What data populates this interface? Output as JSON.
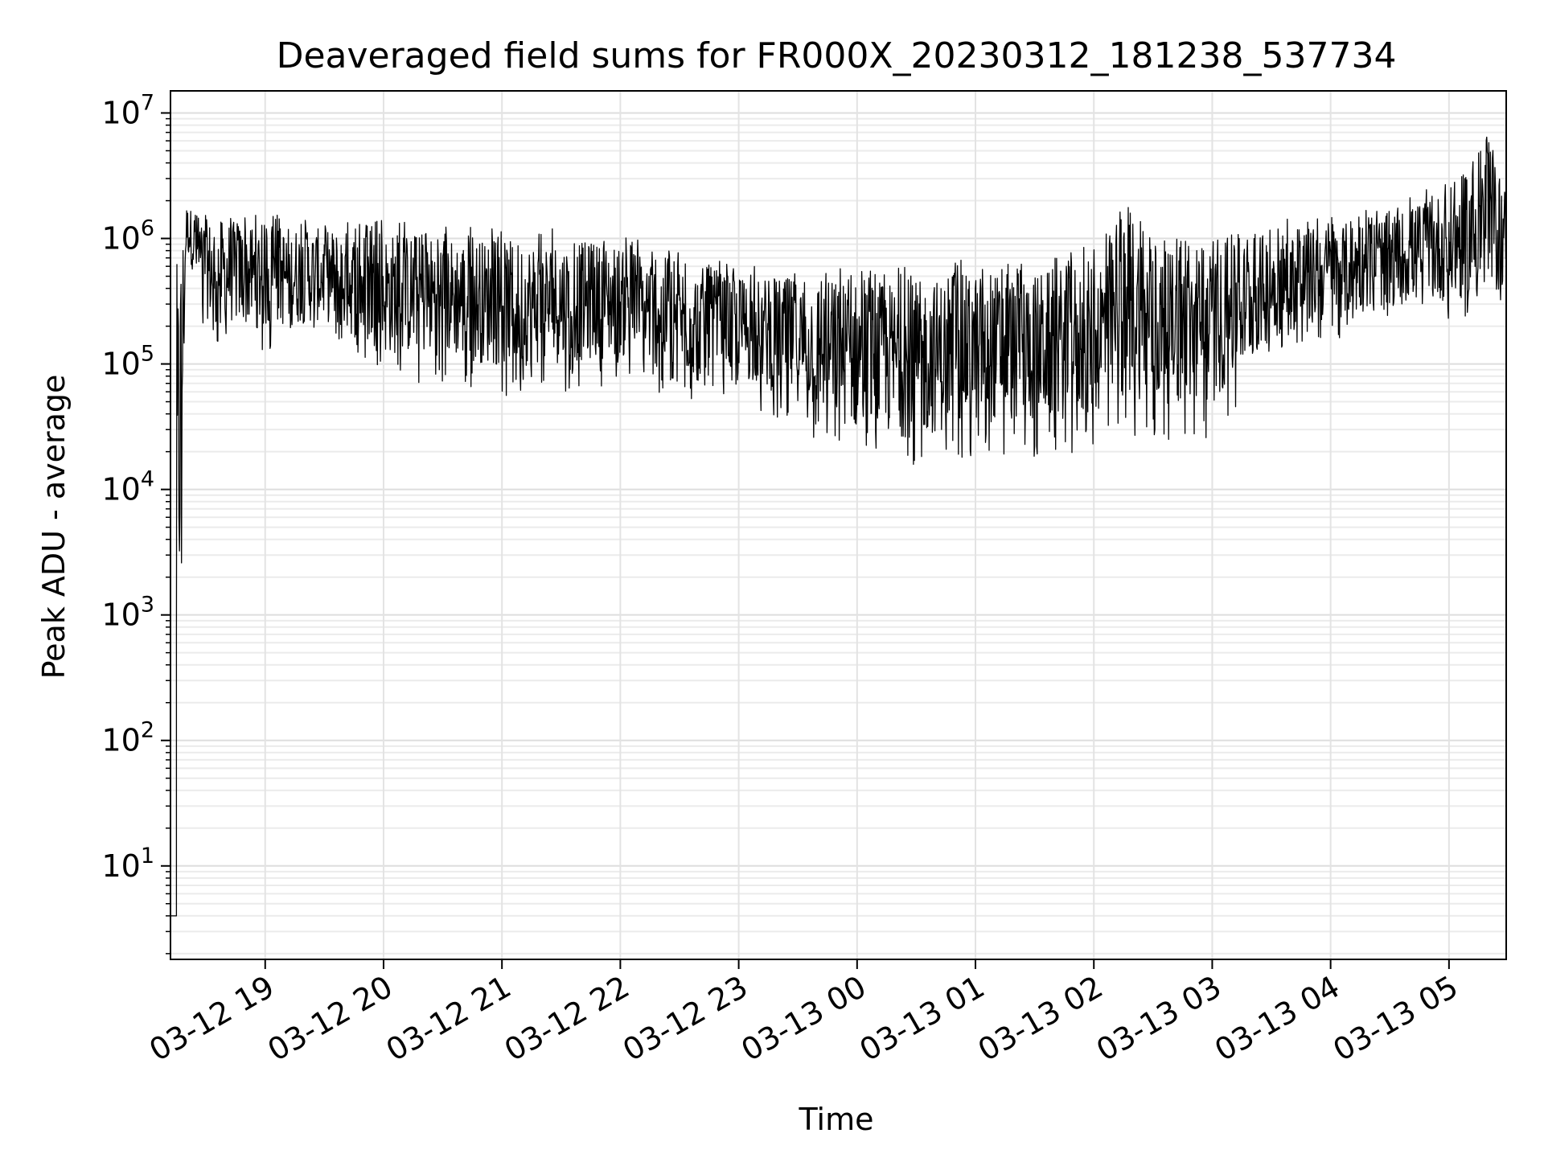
{
  "chart_data": {
    "type": "line",
    "title": "Deaveraged field sums for FR000X_20230312_181238_537734",
    "xlabel": "Time",
    "ylabel": "Peak ADU - average",
    "y_scale": "log",
    "ylim": [
      1.8,
      15000000
    ],
    "xlim": [
      "2023-03-12 18:12",
      "2023-03-13 05:29"
    ],
    "grid": true,
    "grid_minor": true,
    "line_color": "#000000",
    "x_ticks": [
      {
        "t": "2023-03-12 19:00",
        "label": "03-12 19"
      },
      {
        "t": "2023-03-12 20:00",
        "label": "03-12 20"
      },
      {
        "t": "2023-03-12 21:00",
        "label": "03-12 21"
      },
      {
        "t": "2023-03-12 22:00",
        "label": "03-12 22"
      },
      {
        "t": "2023-03-12 23:00",
        "label": "03-12 23"
      },
      {
        "t": "2023-03-13 00:00",
        "label": "03-13 00"
      },
      {
        "t": "2023-03-13 01:00",
        "label": "03-13 01"
      },
      {
        "t": "2023-03-13 02:00",
        "label": "03-13 02"
      },
      {
        "t": "2023-03-13 03:00",
        "label": "03-13 03"
      },
      {
        "t": "2023-03-13 04:00",
        "label": "03-13 04"
      },
      {
        "t": "2023-03-13 05:00",
        "label": "03-13 05"
      }
    ],
    "y_ticks": [
      {
        "value": 10,
        "base": "10",
        "exp": "1"
      },
      {
        "value": 100,
        "base": "10",
        "exp": "2"
      },
      {
        "value": 1000,
        "base": "10",
        "exp": "3"
      },
      {
        "value": 10000,
        "base": "10",
        "exp": "4"
      },
      {
        "value": 100000,
        "base": "10",
        "exp": "5"
      },
      {
        "value": 1000000,
        "base": "10",
        "exp": "6"
      },
      {
        "value": 10000000,
        "base": "10",
        "exp": "7"
      }
    ],
    "series": [
      {
        "style": "dense noisy trace; lower and upper envelope",
        "points": [
          {
            "x": "2023-03-12 18:12",
            "low": 4,
            "high": 4
          },
          {
            "x": "2023-03-12 18:15",
            "low": 4,
            "high": 1600000
          },
          {
            "x": "2023-03-12 18:20",
            "low": 700000,
            "high": 2000000
          },
          {
            "x": "2023-03-12 18:30",
            "low": 150000,
            "high": 1700000
          },
          {
            "x": "2023-03-12 19:00",
            "low": 120000,
            "high": 1600000
          },
          {
            "x": "2023-03-12 19:30",
            "low": 150000,
            "high": 1400000
          },
          {
            "x": "2023-03-12 20:00",
            "low": 70000,
            "high": 1400000
          },
          {
            "x": "2023-03-12 20:30",
            "low": 70000,
            "high": 1300000
          },
          {
            "x": "2023-03-12 21:00",
            "low": 55000,
            "high": 1200000
          },
          {
            "x": "2023-03-12 21:30",
            "low": 60000,
            "high": 1200000
          },
          {
            "x": "2023-03-12 22:00",
            "low": 70000,
            "high": 1100000
          },
          {
            "x": "2023-03-12 22:30",
            "low": 50000,
            "high": 800000
          },
          {
            "x": "2023-03-12 23:00",
            "low": 50000,
            "high": 600000
          },
          {
            "x": "2023-03-12 23:30",
            "low": 30000,
            "high": 600000
          },
          {
            "x": "2023-03-13 00:00",
            "low": 15000,
            "high": 600000
          },
          {
            "x": "2023-03-13 00:30",
            "low": 13000,
            "high": 600000
          },
          {
            "x": "2023-03-13 01:00",
            "low": 18000,
            "high": 700000
          },
          {
            "x": "2023-03-13 01:30",
            "low": 18000,
            "high": 700000
          },
          {
            "x": "2023-03-13 02:00",
            "low": 20000,
            "high": 900000
          },
          {
            "x": "2023-03-13 02:20",
            "low": 25000,
            "high": 2300000
          },
          {
            "x": "2023-03-13 02:30",
            "low": 25000,
            "high": 1000000
          },
          {
            "x": "2023-03-13 03:00",
            "low": 25000,
            "high": 1000000
          },
          {
            "x": "2023-03-13 03:30",
            "low": 100000,
            "high": 1400000
          },
          {
            "x": "2023-03-13 04:00",
            "low": 150000,
            "high": 1500000
          },
          {
            "x": "2023-03-13 04:30",
            "low": 200000,
            "high": 1800000
          },
          {
            "x": "2023-03-13 05:00",
            "low": 200000,
            "high": 3000000
          },
          {
            "x": "2023-03-13 05:20",
            "low": 150000,
            "high": 7000000
          },
          {
            "x": "2023-03-13 05:29",
            "low": 300000,
            "high": 3000000
          }
        ]
      }
    ]
  }
}
